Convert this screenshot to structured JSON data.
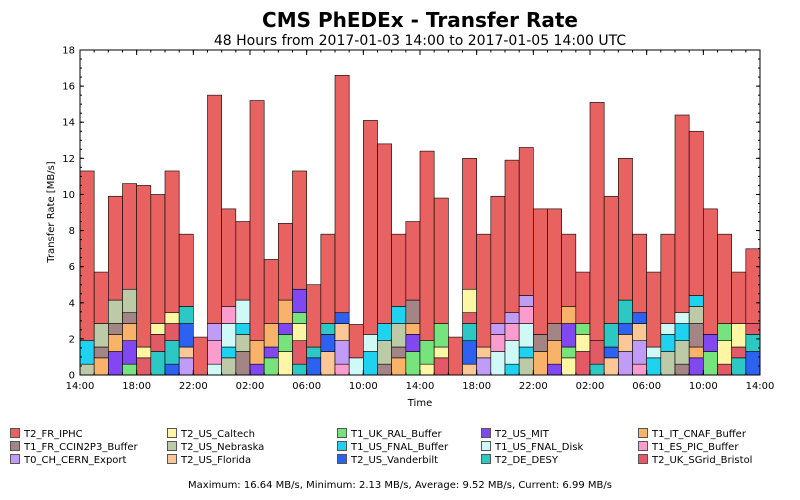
{
  "chart_data": {
    "type": "bar",
    "stacked": true,
    "title": "CMS PhEDEx - Transfer Rate",
    "subtitle": "48 Hours from 2017-01-03 14:00 to 2017-01-05 14:00 UTC",
    "xlabel": "Time",
    "ylabel": "Transfer Rate [MB/s]",
    "ylim": [
      0,
      18
    ],
    "yticks": [
      0,
      2,
      4,
      6,
      8,
      10,
      12,
      14,
      16,
      18
    ],
    "xtick_labels": [
      "14:00",
      "18:00",
      "22:00",
      "02:00",
      "06:00",
      "10:00",
      "14:00",
      "18:00",
      "22:00",
      "02:00",
      "06:00",
      "10:00",
      "14:00"
    ],
    "summary": "Maximum: 16.64 MB/s, Minimum: 2.13 MB/s, Average: 9.52 MB/s, Current: 6.99 MB/s",
    "totals": [
      11.3,
      5.7,
      9.9,
      10.6,
      10.5,
      10.0,
      11.3,
      7.8,
      2.1,
      15.5,
      9.2,
      8.5,
      15.2,
      6.4,
      8.4,
      11.3,
      5.0,
      7.8,
      16.6,
      2.8,
      14.1,
      12.8,
      7.8,
      8.5,
      12.4,
      9.8,
      2.1,
      12.0,
      7.8,
      9.9,
      11.9,
      12.6,
      9.2,
      9.2,
      7.8,
      5.7,
      15.1,
      9.9,
      12.0,
      7.8,
      5.7,
      7.8,
      14.4,
      13.5,
      9.2,
      7.8,
      5.7,
      6.99
    ],
    "series": [
      {
        "name": "T2_FR_IPHC",
        "color": "#e86262"
      },
      {
        "name": "T1_FR_CCIN2P3_Buffer",
        "color": "#a48585"
      },
      {
        "name": "T0_CH_CERN_Export",
        "color": "#c09cf7"
      },
      {
        "name": "T2_US_Caltech",
        "color": "#fdf6a4"
      },
      {
        "name": "T2_US_Nebraska",
        "color": "#bccaa8"
      },
      {
        "name": "T2_US_Florida",
        "color": "#fbc797"
      },
      {
        "name": "T1_UK_RAL_Buffer",
        "color": "#77e37d"
      },
      {
        "name": "T1_US_FNAL_Buffer",
        "color": "#1fd3f0"
      },
      {
        "name": "T2_US_Vanderbilt",
        "color": "#2d62f1"
      },
      {
        "name": "T2_US_MIT",
        "color": "#8147f1"
      },
      {
        "name": "T1_US_FNAL_Disk",
        "color": "#cff9f7"
      },
      {
        "name": "T2_DE_DESY",
        "color": "#2cc8c5"
      },
      {
        "name": "T1_IT_CNAF_Buffer",
        "color": "#f8b26a"
      },
      {
        "name": "T1_ES_PIC_Buffer",
        "color": "#fb9ccf"
      },
      {
        "name": "T2_UK_SGrid_Bristol",
        "color": "#e35a67"
      }
    ]
  }
}
